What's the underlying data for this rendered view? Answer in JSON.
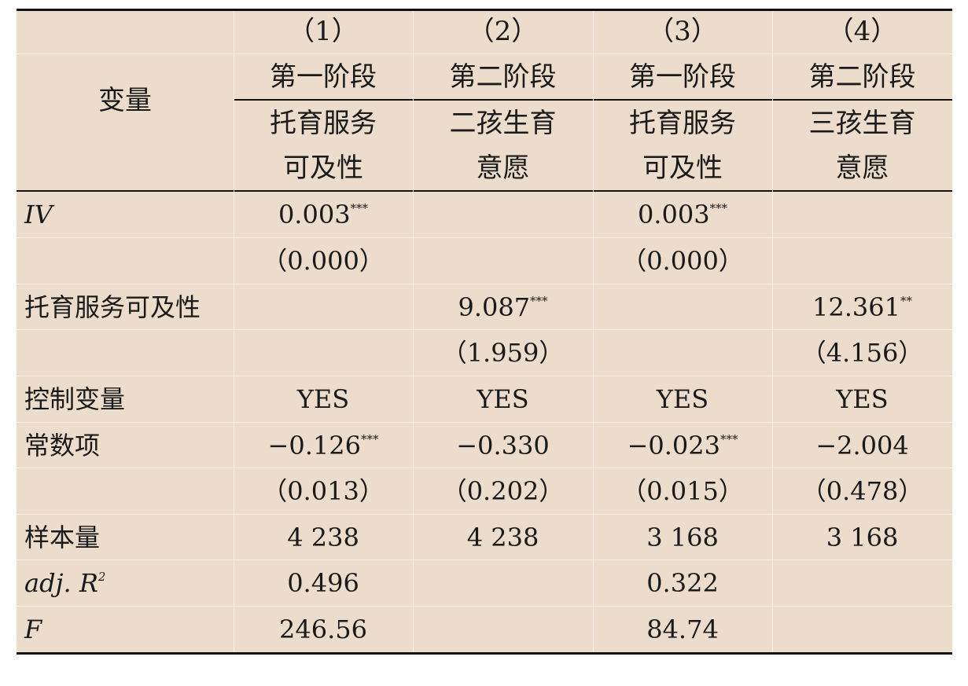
{
  "table": {
    "stub_header": "变量",
    "columns": [
      {
        "number": "（1）",
        "stage": "第一阶段",
        "dep_line1": "托育服务",
        "dep_line2": "可及性"
      },
      {
        "number": "（2）",
        "stage": "第二阶段",
        "dep_line1": "二孩生育",
        "dep_line2": "意愿"
      },
      {
        "number": "（3）",
        "stage": "第一阶段",
        "dep_line1": "托育服务",
        "dep_line2": "可及性"
      },
      {
        "number": "（4）",
        "stage": "第二阶段",
        "dep_line1": "三孩生育",
        "dep_line2": "意愿"
      }
    ],
    "rows": {
      "iv": {
        "label": "IV",
        "c1": "0.003",
        "c1_star": "***",
        "c3": "0.003",
        "c3_star": "***",
        "c1_se": "（0.000）",
        "c3_se": "（0.000）"
      },
      "access": {
        "label": "托育服务可及性",
        "c2": "9.087",
        "c2_star": "***",
        "c4": "12.361",
        "c4_star": "**",
        "c2_se": "（1.959）",
        "c4_se": "（4.156）"
      },
      "controls": {
        "label": "控制变量",
        "c1": "YES",
        "c2": "YES",
        "c3": "YES",
        "c4": "YES"
      },
      "const": {
        "label": "常数项",
        "c1": "−0.126",
        "c1_star": "***",
        "c2": "−0.330",
        "c3": "−0.023",
        "c3_star": "***",
        "c4": "−2.004",
        "c1_se": "（0.013）",
        "c2_se": "（0.202）",
        "c3_se": "（0.015）",
        "c4_se": "（0.478）"
      },
      "n": {
        "label": "样本量",
        "c1": "4 238",
        "c2": "4 238",
        "c3": "3 168",
        "c4": "3 168"
      },
      "adjr2": {
        "label_main": "adj. R",
        "label_sup": "2",
        "c1": "0.496",
        "c3": "0.322"
      },
      "f": {
        "label": "F",
        "c1": "246.56",
        "c3": "84.74"
      }
    }
  }
}
